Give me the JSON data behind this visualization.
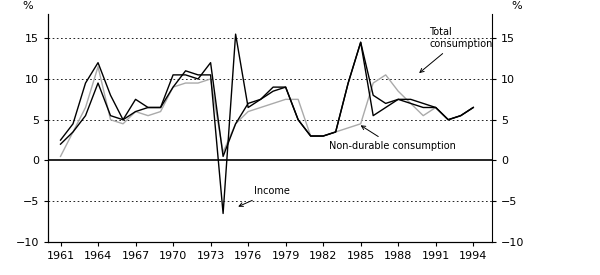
{
  "years": [
    1961,
    1962,
    1963,
    1964,
    1965,
    1966,
    1967,
    1968,
    1969,
    1970,
    1971,
    1972,
    1973,
    1974,
    1975,
    1976,
    1977,
    1978,
    1979,
    1980,
    1981,
    1982,
    1983,
    1984,
    1985,
    1986,
    1987,
    1988,
    1989,
    1990,
    1991,
    1992,
    1993,
    1994
  ],
  "total_consumption": [
    2.5,
    4.5,
    9.5,
    12.0,
    8.0,
    5.0,
    7.5,
    6.5,
    6.5,
    10.5,
    10.5,
    10.0,
    12.0,
    0.5,
    4.5,
    7.0,
    7.5,
    8.5,
    9.0,
    5.0,
    3.0,
    3.0,
    3.5,
    9.5,
    14.5,
    8.0,
    7.0,
    7.5,
    7.0,
    6.5,
    6.5,
    5.0,
    5.5,
    6.5
  ],
  "non_durable_consumption": [
    0.5,
    3.5,
    6.5,
    11.5,
    5.0,
    4.5,
    6.0,
    5.5,
    6.0,
    9.0,
    9.5,
    9.5,
    10.0,
    1.0,
    4.5,
    6.0,
    6.5,
    7.0,
    7.5,
    7.5,
    3.0,
    3.0,
    3.5,
    4.0,
    4.5,
    9.5,
    10.5,
    8.5,
    7.0,
    5.5,
    6.5,
    5.0,
    5.5,
    6.5
  ],
  "income": [
    2.0,
    3.5,
    5.5,
    9.5,
    5.5,
    5.0,
    6.0,
    6.5,
    6.5,
    9.0,
    11.0,
    10.5,
    10.5,
    -6.5,
    15.5,
    6.5,
    7.5,
    9.0,
    9.0,
    5.0,
    3.0,
    3.0,
    3.5,
    9.5,
    14.5,
    5.5,
    6.5,
    7.5,
    7.5,
    7.0,
    6.5,
    5.0,
    5.5,
    6.5
  ],
  "ylim": [
    -10,
    18
  ],
  "yticks": [
    -10,
    -5,
    0,
    5,
    10,
    15
  ],
  "xticks": [
    1961,
    1964,
    1967,
    1970,
    1973,
    1976,
    1979,
    1982,
    1985,
    1988,
    1991,
    1994
  ],
  "total_color": "#000000",
  "non_durable_color": "#999999",
  "income_color": "#000000"
}
